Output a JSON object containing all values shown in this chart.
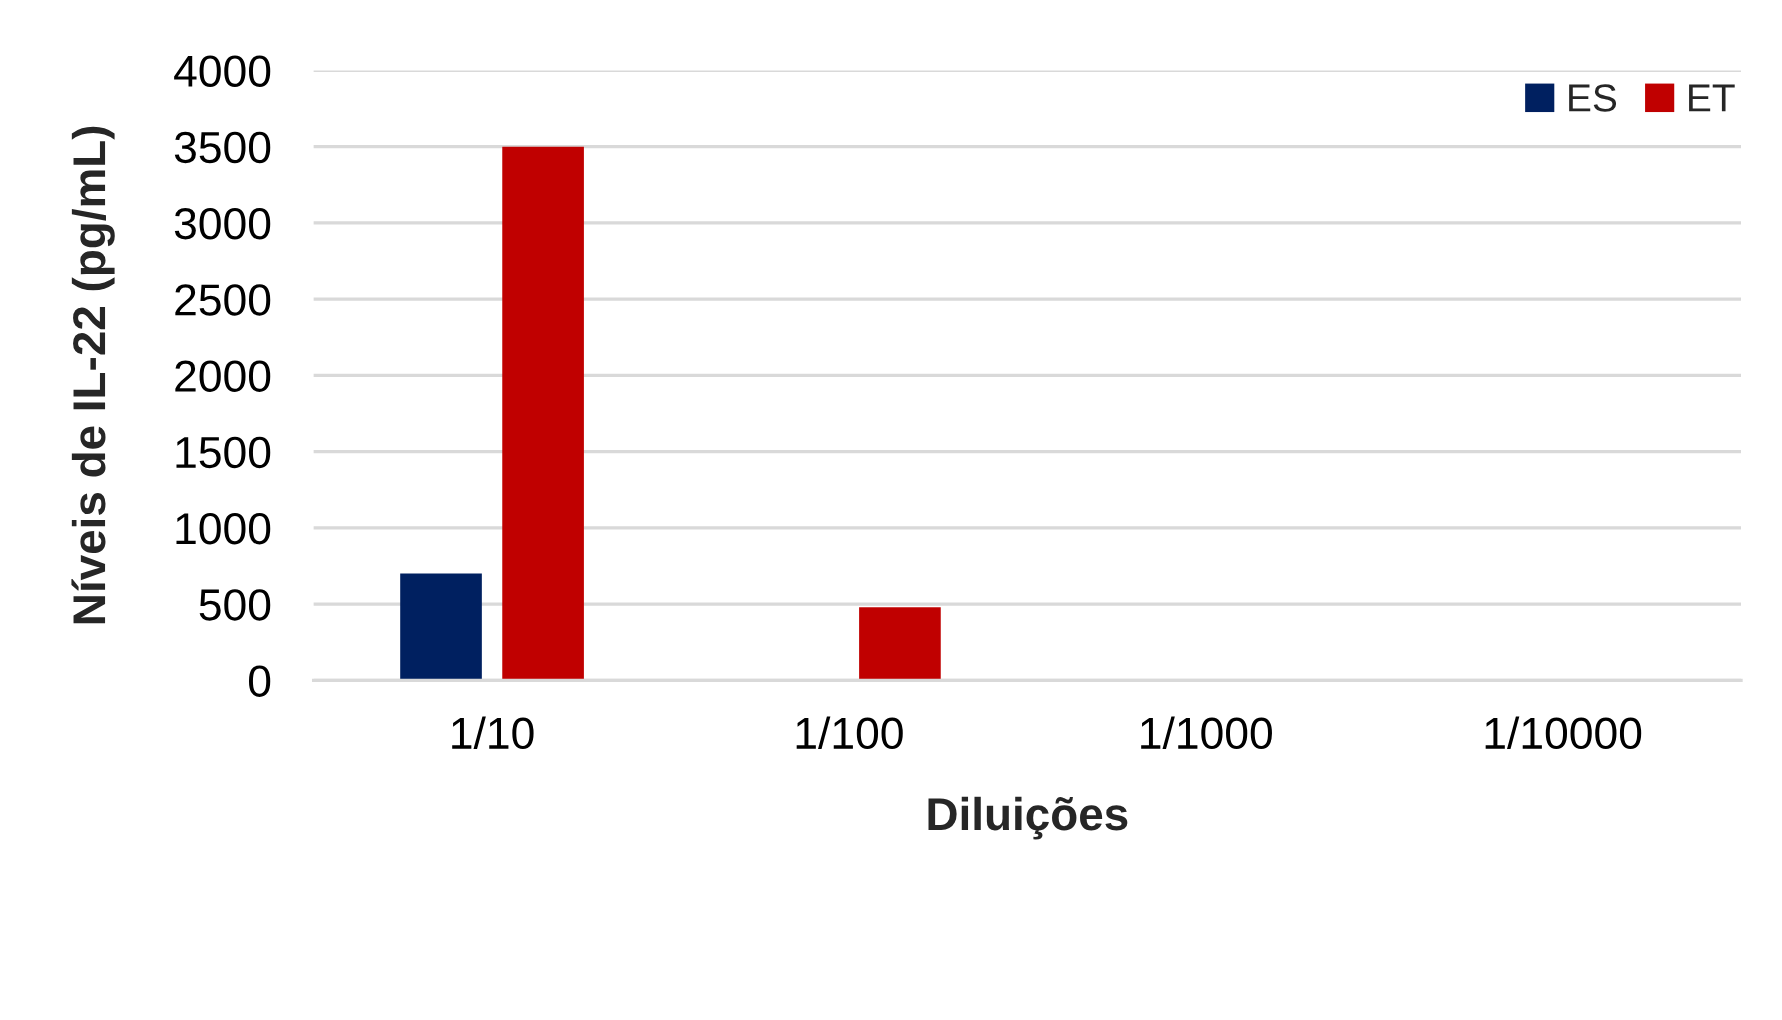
{
  "chart_data": {
    "type": "bar",
    "xlabel": "Diluições",
    "ylabel": "Níveis de IL-22 (pg/mL)",
    "categories": [
      "1/10",
      "1/100",
      "1/1000",
      "1/10000"
    ],
    "series": [
      {
        "name": "ES",
        "color": "#002060",
        "values": [
          700,
          null,
          null,
          null
        ]
      },
      {
        "name": "ET",
        "color": "#c00000",
        "values": [
          3500,
          480,
          null,
          null
        ]
      }
    ],
    "ylim": [
      0,
      4000
    ],
    "yticks": [
      0,
      500,
      1000,
      1500,
      2000,
      2500,
      3000,
      3500,
      4000
    ],
    "grid": "y",
    "legend": "top right"
  }
}
